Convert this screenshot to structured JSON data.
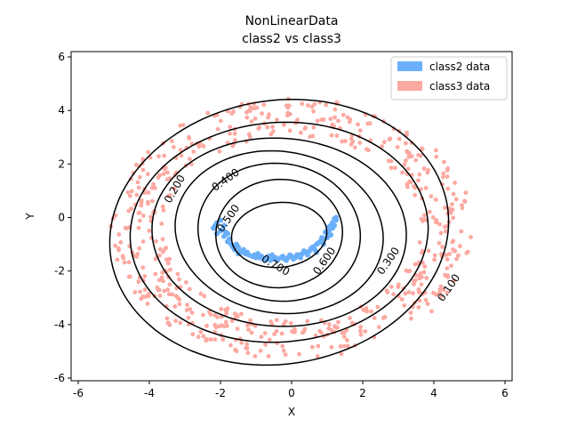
{
  "chart_data": {
    "type": "scatter",
    "title": "NonLinearData",
    "subtitle": "class2 vs  class3",
    "xlabel": "X",
    "ylabel": "Y",
    "xlim": [
      -6.2,
      6.2
    ],
    "ylim": [
      -6.1,
      6.2
    ],
    "xticks": [
      -6,
      -4,
      -2,
      0,
      2,
      4,
      6
    ],
    "yticks": [
      -6,
      -4,
      -2,
      0,
      2,
      4,
      6
    ],
    "grid": false,
    "legend_position": "top-right",
    "series": [
      {
        "name": "class2 data",
        "color": "#6aaffa",
        "points": [
          [
            -2.2,
            -0.4
          ],
          [
            -2.1,
            -0.2
          ],
          [
            -2.0,
            -0.1
          ],
          [
            -1.9,
            -0.3
          ],
          [
            -2.1,
            -0.6
          ],
          [
            -1.9,
            -0.7
          ],
          [
            -1.8,
            -0.9
          ],
          [
            -1.7,
            -1.0
          ],
          [
            -1.6,
            -1.2
          ],
          [
            -1.5,
            -1.1
          ],
          [
            -1.4,
            -1.3
          ],
          [
            -1.3,
            -1.35
          ],
          [
            -1.2,
            -1.4
          ],
          [
            -1.1,
            -1.45
          ],
          [
            -1.0,
            -1.5
          ],
          [
            -0.9,
            -1.5
          ],
          [
            -0.8,
            -1.55
          ],
          [
            -0.7,
            -1.5
          ],
          [
            -0.6,
            -1.6
          ],
          [
            -0.5,
            -1.55
          ],
          [
            -0.4,
            -1.6
          ],
          [
            -0.3,
            -1.5
          ],
          [
            -0.2,
            -1.55
          ],
          [
            -0.1,
            -1.5
          ],
          [
            0.0,
            -1.45
          ],
          [
            0.1,
            -1.5
          ],
          [
            0.2,
            -1.4
          ],
          [
            0.3,
            -1.35
          ],
          [
            0.4,
            -1.3
          ],
          [
            0.5,
            -1.25
          ],
          [
            0.6,
            -1.1
          ],
          [
            0.7,
            -1.0
          ],
          [
            0.8,
            -0.9
          ],
          [
            0.9,
            -0.8
          ],
          [
            1.0,
            -0.6
          ],
          [
            1.05,
            -0.5
          ],
          [
            1.1,
            -0.3
          ],
          [
            1.15,
            -0.2
          ],
          [
            1.2,
            -0.05
          ],
          [
            1.25,
            -0.1
          ],
          [
            -2.0,
            -0.5
          ],
          [
            -1.85,
            -0.55
          ],
          [
            -1.75,
            -0.8
          ],
          [
            -1.55,
            -1.0
          ],
          [
            -1.45,
            -1.25
          ],
          [
            -1.25,
            -1.3
          ],
          [
            -1.05,
            -1.4
          ],
          [
            -0.85,
            -1.45
          ],
          [
            -0.65,
            -1.45
          ],
          [
            -0.45,
            -1.5
          ],
          [
            -0.25,
            -1.45
          ],
          [
            -0.05,
            -1.4
          ],
          [
            0.15,
            -1.4
          ],
          [
            0.35,
            -1.25
          ],
          [
            0.55,
            -1.15
          ],
          [
            0.75,
            -0.95
          ],
          [
            0.85,
            -0.75
          ],
          [
            0.95,
            -0.55
          ],
          [
            1.05,
            -0.35
          ],
          [
            1.15,
            -0.4
          ],
          [
            -2.15,
            -0.3
          ],
          [
            -1.95,
            -0.45
          ],
          [
            -1.65,
            -1.1
          ],
          [
            -1.35,
            -1.2
          ],
          [
            -0.95,
            -1.35
          ],
          [
            -0.55,
            -1.4
          ],
          [
            0.05,
            -1.55
          ],
          [
            0.45,
            -1.4
          ],
          [
            0.65,
            -1.2
          ],
          [
            0.9,
            -1.0
          ],
          [
            1.0,
            -0.75
          ],
          [
            1.2,
            -0.3
          ],
          [
            -1.8,
            -0.6
          ],
          [
            -1.5,
            -1.35
          ],
          [
            -0.75,
            -1.6
          ],
          [
            -0.15,
            -1.6
          ],
          [
            0.25,
            -1.5
          ],
          [
            0.7,
            -1.3
          ],
          [
            1.1,
            -0.65
          ],
          [
            1.25,
            0.0
          ]
        ]
      },
      {
        "name": "class3 data",
        "color": "#fba9a1",
        "ring_radius_range": [
          3.6,
          5.1
        ],
        "point_count": 600
      }
    ],
    "contours": [
      {
        "level": 0.1,
        "label": "0.100"
      },
      {
        "level": 0.2,
        "label": "0.200"
      },
      {
        "level": 0.3,
        "label": "0.300"
      },
      {
        "level": 0.4,
        "label": "0.400"
      },
      {
        "level": 0.5,
        "label": "0.500"
      },
      {
        "level": 0.6,
        "label": "0.600"
      },
      {
        "level": 0.7,
        "label": "0.700"
      }
    ]
  }
}
